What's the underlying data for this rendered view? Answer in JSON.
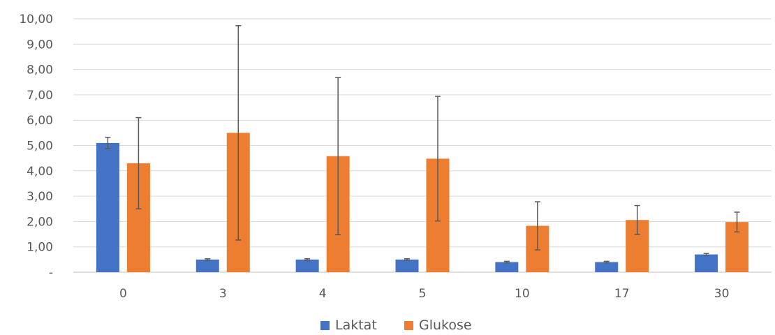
{
  "chart_data": {
    "type": "bar",
    "categories": [
      "0",
      "3",
      "4",
      "5",
      "10",
      "17",
      "30"
    ],
    "series": [
      {
        "name": "Laktat",
        "color": "#4472C4",
        "values": [
          5.1,
          0.5,
          0.5,
          0.5,
          0.4,
          0.4,
          0.7
        ],
        "error": [
          0.22,
          0.03,
          0.03,
          0.03,
          0.03,
          0.03,
          0.04
        ]
      },
      {
        "name": "Glukose",
        "color": "#ED7D31",
        "values": [
          4.3,
          5.5,
          4.58,
          4.48,
          1.83,
          2.06,
          1.98
        ],
        "error": [
          1.8,
          4.23,
          3.1,
          2.46,
          0.95,
          0.57,
          0.39
        ]
      }
    ],
    "ylim": [
      0,
      10
    ],
    "yticks": [
      "-",
      "1,00",
      "2,00",
      "3,00",
      "4,00",
      "5,00",
      "6,00",
      "7,00",
      "8,00",
      "9,00",
      "10,00"
    ],
    "grid": true,
    "legend": "bottom-center",
    "title": "",
    "xlabel": "",
    "ylabel": ""
  },
  "colors": {
    "grid": "#D9D9D9",
    "axis": "#BFBFBF",
    "errorbar": "#595959",
    "text": "#595959"
  }
}
